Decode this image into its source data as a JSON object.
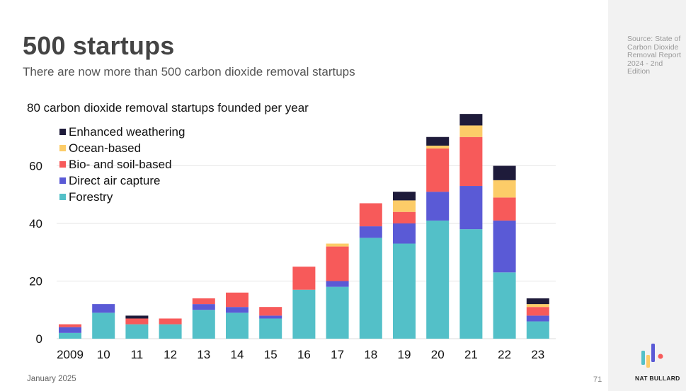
{
  "header": {
    "title": "500 startups",
    "subtitle": "There are now more than 500 carbon dioxide removal startups"
  },
  "sidebar": {
    "source": "Source: State of Carbon Dioxide Removal Report 2024 - 2nd Edition",
    "brand": "NAT BULLARD"
  },
  "footer": {
    "date": "January 2025",
    "page": "71"
  },
  "colors": {
    "Enhanced weathering": "#1e1b3a",
    "Ocean-based": "#fccc68",
    "Bio- and soil-based": "#f75a5a",
    "Direct air capture": "#5a5ad6",
    "Forestry": "#53c0c8"
  },
  "chart_data": {
    "type": "bar",
    "stacked": true,
    "title": "80 carbon dioxide removal startups founded per year",
    "xlabel": "",
    "ylabel": "",
    "ylim": [
      0,
      80
    ],
    "yticks": [
      0,
      20,
      40,
      60
    ],
    "grid": true,
    "legend_position": "top-left",
    "categories": [
      "2009",
      "10",
      "11",
      "12",
      "13",
      "14",
      "15",
      "16",
      "17",
      "18",
      "19",
      "20",
      "21",
      "22",
      "23"
    ],
    "series": [
      {
        "name": "Forestry",
        "values": [
          2,
          9,
          5,
          5,
          10,
          9,
          7,
          17,
          18,
          35,
          33,
          41,
          38,
          23,
          6
        ]
      },
      {
        "name": "Direct air capture",
        "values": [
          2,
          3,
          0,
          0,
          2,
          2,
          1,
          0,
          2,
          4,
          7,
          10,
          15,
          18,
          2
        ]
      },
      {
        "name": "Bio- and soil-based",
        "values": [
          1,
          0,
          2,
          2,
          2,
          5,
          3,
          8,
          12,
          8,
          4,
          15,
          17,
          8,
          3
        ]
      },
      {
        "name": "Ocean-based",
        "values": [
          0,
          0,
          0,
          0,
          0,
          0,
          0,
          0,
          1,
          0,
          4,
          1,
          4,
          6,
          1
        ]
      },
      {
        "name": "Enhanced weathering",
        "values": [
          0,
          0,
          1,
          0,
          0,
          0,
          0,
          0,
          0,
          0,
          3,
          3,
          4,
          5,
          2
        ]
      }
    ],
    "legend_order": [
      "Enhanced weathering",
      "Ocean-based",
      "Bio- and soil-based",
      "Direct air capture",
      "Forestry"
    ]
  }
}
